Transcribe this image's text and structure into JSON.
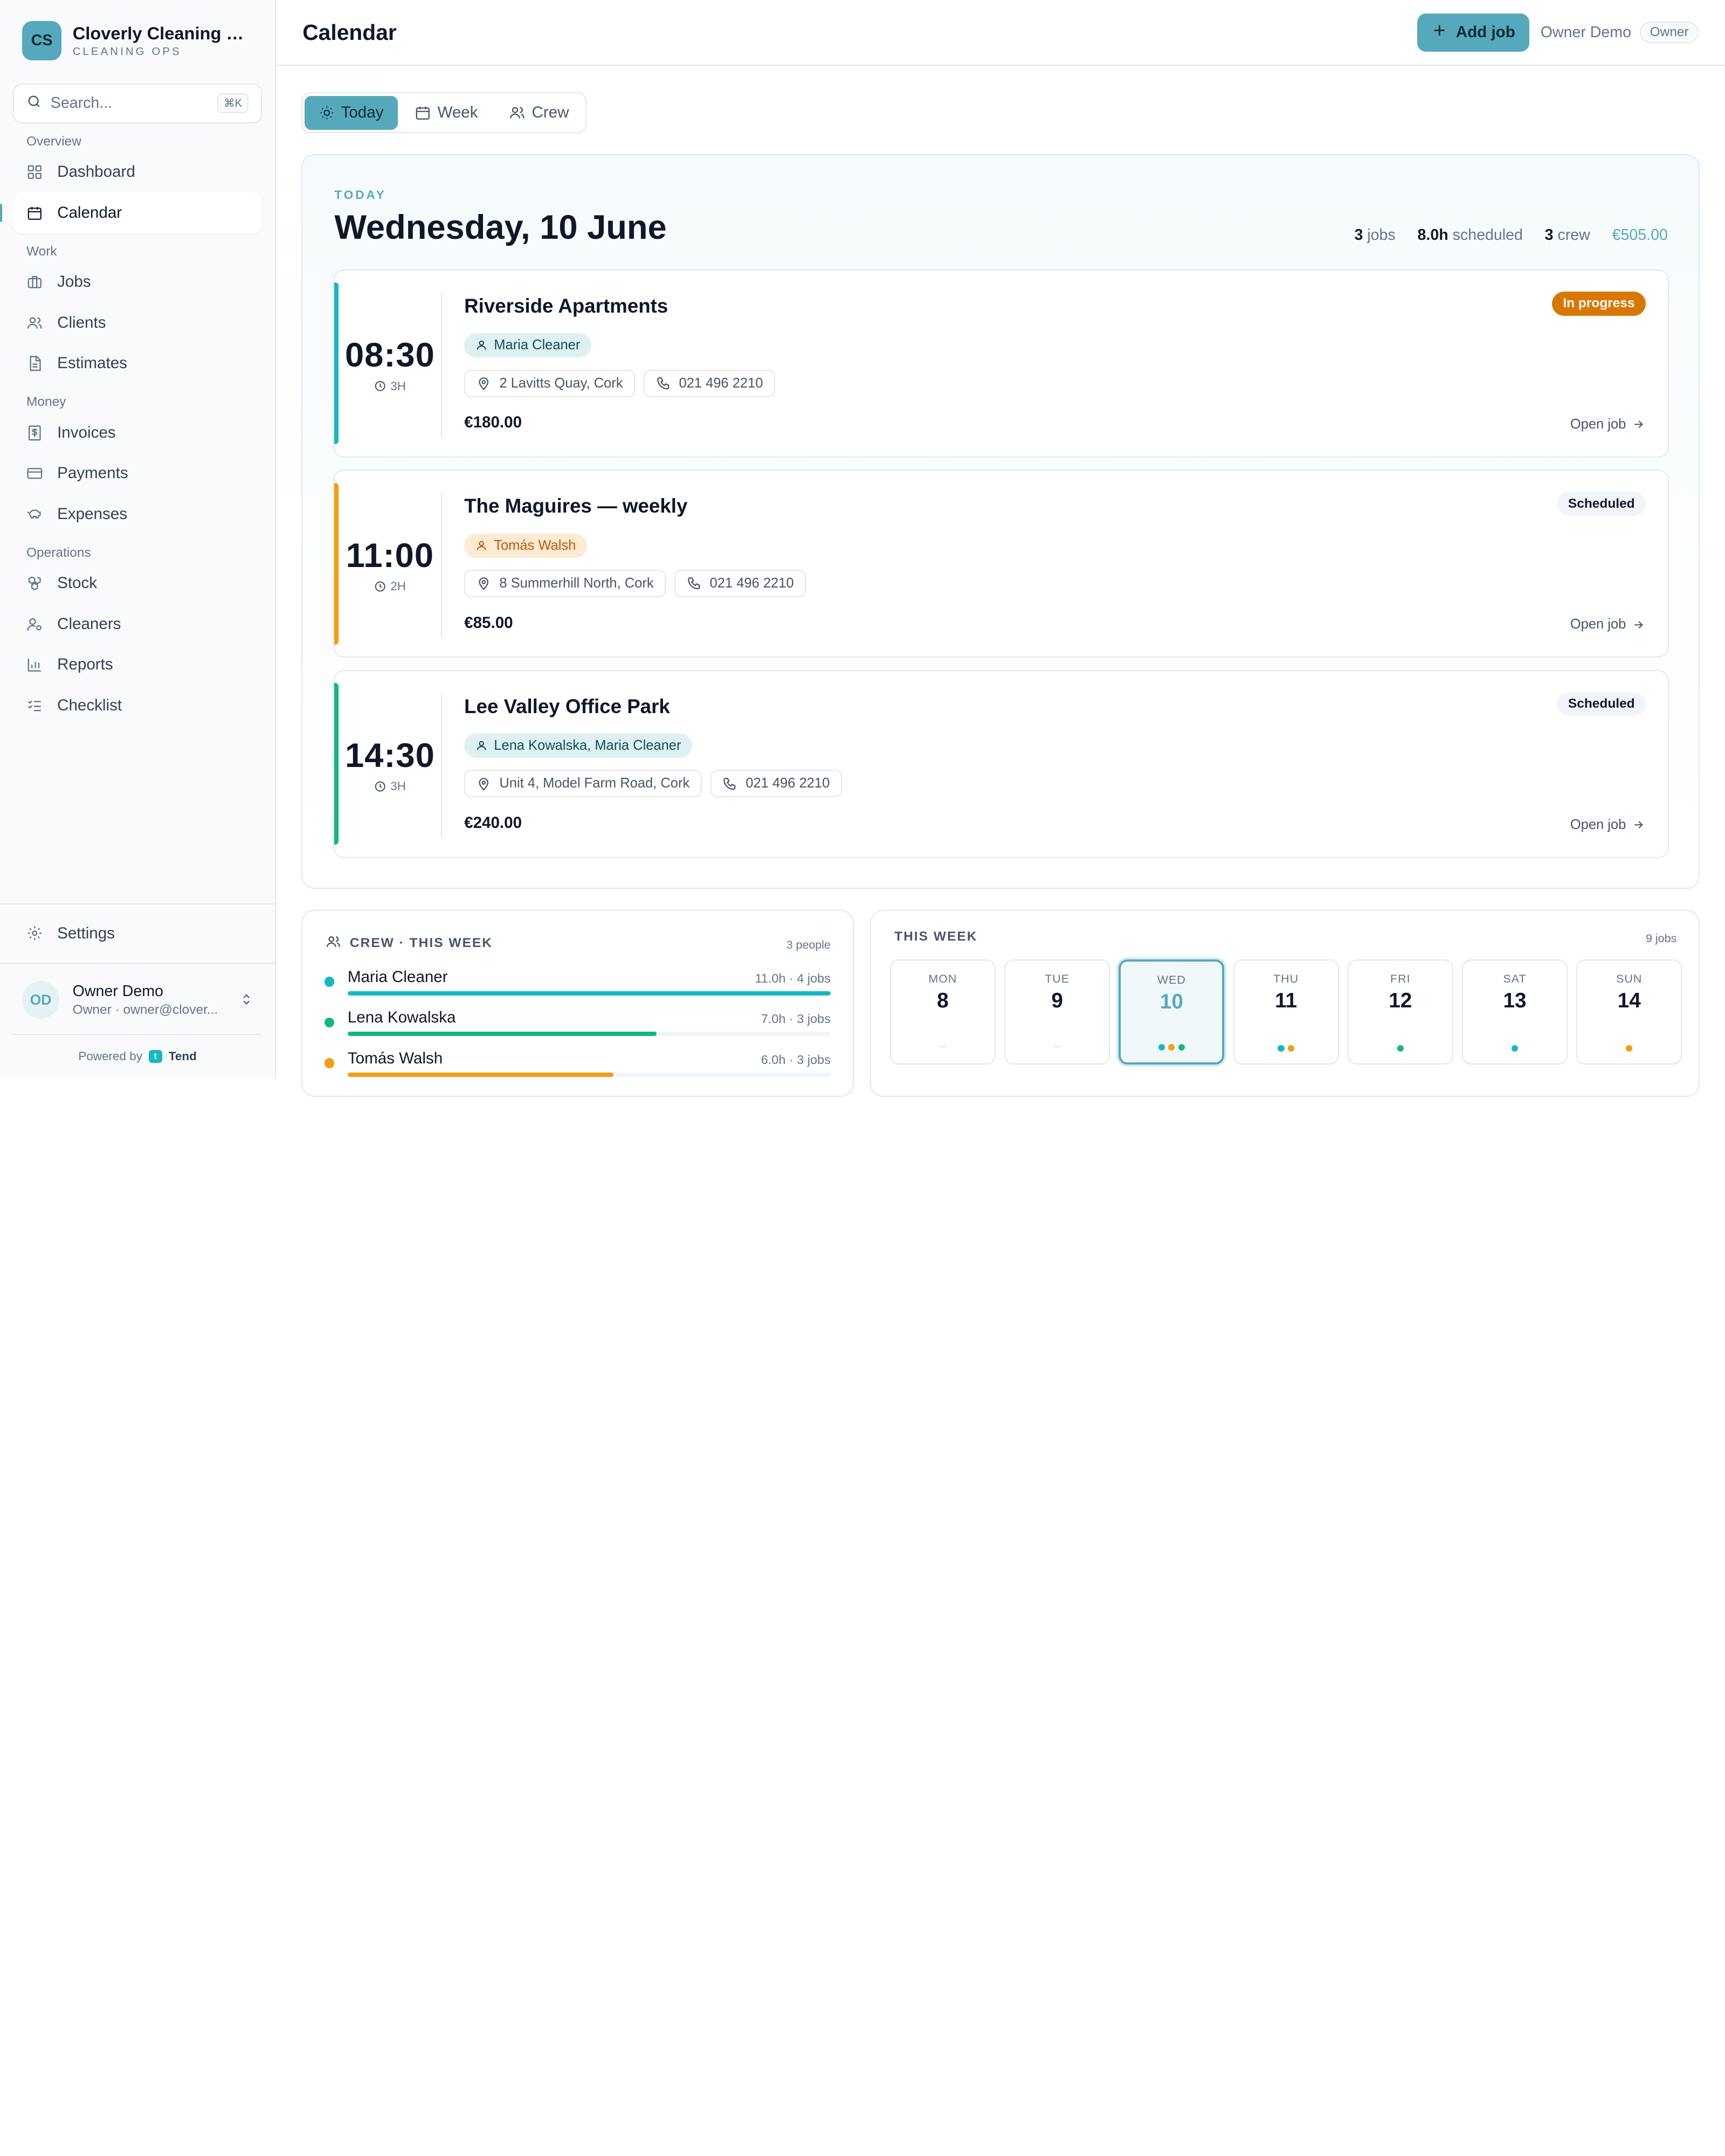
{
  "brand": {
    "initials": "CS",
    "name": "Cloverly Cleaning S...",
    "subtitle": "CLEANING OPS"
  },
  "search": {
    "placeholder": "Search...",
    "shortcut": "⌘K"
  },
  "nav": {
    "groups": [
      {
        "label": "Overview",
        "items": [
          {
            "label": "Dashboard",
            "icon": "dashboard-icon"
          },
          {
            "label": "Calendar",
            "icon": "calendar-icon",
            "active": true
          }
        ]
      },
      {
        "label": "Work",
        "items": [
          {
            "label": "Jobs",
            "icon": "briefcase-icon"
          },
          {
            "label": "Clients",
            "icon": "users-icon"
          },
          {
            "label": "Estimates",
            "icon": "document-icon"
          }
        ]
      },
      {
        "label": "Money",
        "items": [
          {
            "label": "Invoices",
            "icon": "invoice-icon"
          },
          {
            "label": "Payments",
            "icon": "credit-card-icon"
          },
          {
            "label": "Expenses",
            "icon": "piggy-bank-icon"
          }
        ]
      },
      {
        "label": "Operations",
        "items": [
          {
            "label": "Stock",
            "icon": "boxes-icon"
          },
          {
            "label": "Cleaners",
            "icon": "user-cog-icon"
          },
          {
            "label": "Reports",
            "icon": "bar-chart-icon"
          },
          {
            "label": "Checklist",
            "icon": "checklist-icon"
          }
        ]
      }
    ],
    "settings_label": "Settings"
  },
  "user": {
    "initials": "OD",
    "name": "Owner Demo",
    "sub": "Owner · owner@clover..."
  },
  "powered": {
    "prefix": "Powered by",
    "name": "Tend",
    "badge": "t"
  },
  "header": {
    "title": "Calendar",
    "add_label": "Add job",
    "owner_name": "Owner Demo",
    "role": "Owner"
  },
  "tabs": [
    {
      "label": "Today",
      "icon": "sun-icon",
      "active": true
    },
    {
      "label": "Week",
      "icon": "calendar-icon"
    },
    {
      "label": "Crew",
      "icon": "users-icon"
    }
  ],
  "today": {
    "label": "TODAY",
    "date": "Wednesday, 10 June",
    "stats": {
      "jobs_value": "3",
      "jobs_label": "jobs",
      "hours_value": "8.0h",
      "hours_label": "scheduled",
      "crew_value": "3",
      "crew_label": "crew",
      "revenue": "€505.00"
    }
  },
  "jobs": [
    {
      "time": "08:30",
      "duration": "3H",
      "title": "Riverside Apartments",
      "crew": "Maria Cleaner",
      "crew_tone": "teal",
      "address": "2 Lavitts Quay, Cork",
      "phone": "021 496 2210",
      "price": "€180.00",
      "status": "In progress",
      "status_kind": "progress",
      "accent": "#14b8c6",
      "open_label": "Open job"
    },
    {
      "time": "11:00",
      "duration": "2H",
      "title": "The Maguires — weekly",
      "crew": "Tomás Walsh",
      "crew_tone": "amber",
      "address": "8 Summerhill North, Cork",
      "phone": "021 496 2210",
      "price": "€85.00",
      "status": "Scheduled",
      "status_kind": "scheduled",
      "accent": "#f59e0b",
      "open_label": "Open job"
    },
    {
      "time": "14:30",
      "duration": "3H",
      "title": "Lee Valley Office Park",
      "crew": "Lena Kowalska, Maria Cleaner",
      "crew_tone": "teal",
      "address": "Unit 4, Model Farm Road, Cork",
      "phone": "021 496 2210",
      "price": "€240.00",
      "status": "Scheduled",
      "status_kind": "scheduled",
      "accent": "#10b981",
      "open_label": "Open job"
    }
  ],
  "crew_panel": {
    "title": "CREW · THIS WEEK",
    "count": "3 people",
    "members": [
      {
        "name": "Maria Cleaner",
        "meta": "11.0h · 4 jobs",
        "color": "#14b8c6",
        "load": 1.0
      },
      {
        "name": "Lena Kowalska",
        "meta": "7.0h · 3 jobs",
        "color": "#10b981",
        "load": 0.64
      },
      {
        "name": "Tomás Walsh",
        "meta": "6.0h · 3 jobs",
        "color": "#f59e0b",
        "load": 0.55
      }
    ]
  },
  "week_panel": {
    "title": "THIS WEEK",
    "count": "9 jobs",
    "days": [
      {
        "name": "MON",
        "num": "8",
        "dots": []
      },
      {
        "name": "TUE",
        "num": "9",
        "dots": []
      },
      {
        "name": "WED",
        "num": "10",
        "active": true,
        "dots": [
          "#14b8c6",
          "#f59e0b",
          "#10b981"
        ]
      },
      {
        "name": "THU",
        "num": "11",
        "dots": [
          "#14b8c6",
          "#f59e0b"
        ]
      },
      {
        "name": "FRI",
        "num": "12",
        "dots": [
          "#10b981"
        ]
      },
      {
        "name": "SAT",
        "num": "13",
        "dots": [
          "#14b8c6"
        ]
      },
      {
        "name": "SUN",
        "num": "14",
        "dots": [
          "#f59e0b"
        ]
      }
    ],
    "empty_mark": "–"
  },
  "colors": {
    "accent": "#56a9bd",
    "in_progress": "#d97706",
    "teal": "#14b8c6",
    "amber": "#f59e0b",
    "green": "#10b981"
  }
}
